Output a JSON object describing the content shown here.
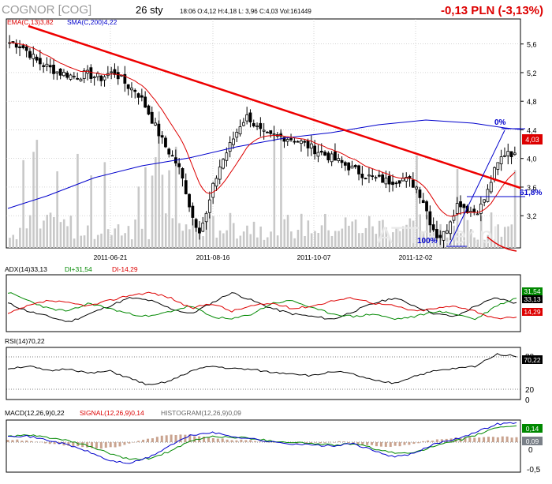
{
  "header": {
    "title": "COGNOR [COG]",
    "date": "26 sty",
    "quote": "18:06  O:4,12  H:4,18  L: 3,96  C:4,03  Vol:161449",
    "change": "-0,13 PLN (-3,13%)"
  },
  "watermark": "ATTrader.pl",
  "colors": {
    "red": "#dd0000",
    "blue": "#0000cc",
    "green": "#008800",
    "black": "#000000",
    "hist": "#c9a38f",
    "volume": "#c8c8c8"
  },
  "chart_data": [
    {
      "type": "candlestick",
      "indicators": [
        {
          "label": "EMA(C,13)",
          "value": "3,82",
          "color": "#dd0000"
        },
        {
          "label": "SMA(C,200)",
          "value": "4,22",
          "color": "#0000cc"
        }
      ],
      "x_ticks": [
        "2011-06-21",
        "2011-08-16",
        "2011-10-07",
        "2011-12-02"
      ],
      "y_ticks": [
        "5,6",
        "5,2",
        "4,8",
        "4,4",
        "4,0",
        "3,6",
        "3,2"
      ],
      "ylim": [
        2.75,
        5.95
      ],
      "last_close": "4,03",
      "annotations": {
        "fib_0": "0%",
        "fib_618": "61,8%",
        "fib_100": "100%"
      },
      "close_approx": [
        5.62,
        5.6,
        5.55,
        5.45,
        5.35,
        5.3,
        5.25,
        5.2,
        5.18,
        5.15,
        5.16,
        5.18,
        5.15,
        5.12,
        5.18,
        5.2,
        5.1,
        5.0,
        4.95,
        4.8,
        4.6,
        4.4,
        4.2,
        4.05,
        3.9,
        3.6,
        3.2,
        3.0,
        3.2,
        3.6,
        3.9,
        4.1,
        4.3,
        4.5,
        4.6,
        4.45,
        4.35,
        4.3,
        4.32,
        4.3,
        4.28,
        4.25,
        4.2,
        4.15,
        4.1,
        4.05,
        4.0,
        3.95,
        3.9,
        3.85,
        3.8,
        3.75,
        3.72,
        3.7,
        3.68,
        3.7,
        3.72,
        3.68,
        3.6,
        3.4,
        3.1,
        2.9,
        2.95,
        3.2,
        3.4,
        3.3,
        3.25,
        3.3,
        3.5,
        3.8,
        4.0,
        4.12,
        4.03
      ]
    },
    {
      "type": "line",
      "title": "ADX(14)",
      "series": [
        {
          "name": "ADX(14)",
          "last": "33,13",
          "color": "#000000"
        },
        {
          "name": "DI+",
          "last": "31,54",
          "color": "#008800"
        },
        {
          "name": "DI-",
          "last": "14,29",
          "color": "#dd0000"
        }
      ]
    },
    {
      "type": "line",
      "title": "RSI(14)",
      "series": [
        {
          "name": "RSI(14)",
          "last": "70,22",
          "color": "#000000"
        }
      ],
      "y_ticks": [
        "80",
        "20",
        "0"
      ]
    },
    {
      "type": "line",
      "title": "MACD(12,26,9)",
      "series": [
        {
          "name": "MACD(12,26,9)",
          "last": "0,22",
          "color": "#0000cc"
        },
        {
          "name": "SIGNAL(12,26,9)",
          "last": "0,14",
          "color": "#008800"
        },
        {
          "name": "HISTOGRAM(12,26,9)",
          "last": "0,09",
          "color": "#c9a38f"
        }
      ],
      "y_ticks": [
        "0",
        "-0,5"
      ],
      "label_signal_value": "0,14",
      "label_hist_value": "0,09"
    }
  ]
}
